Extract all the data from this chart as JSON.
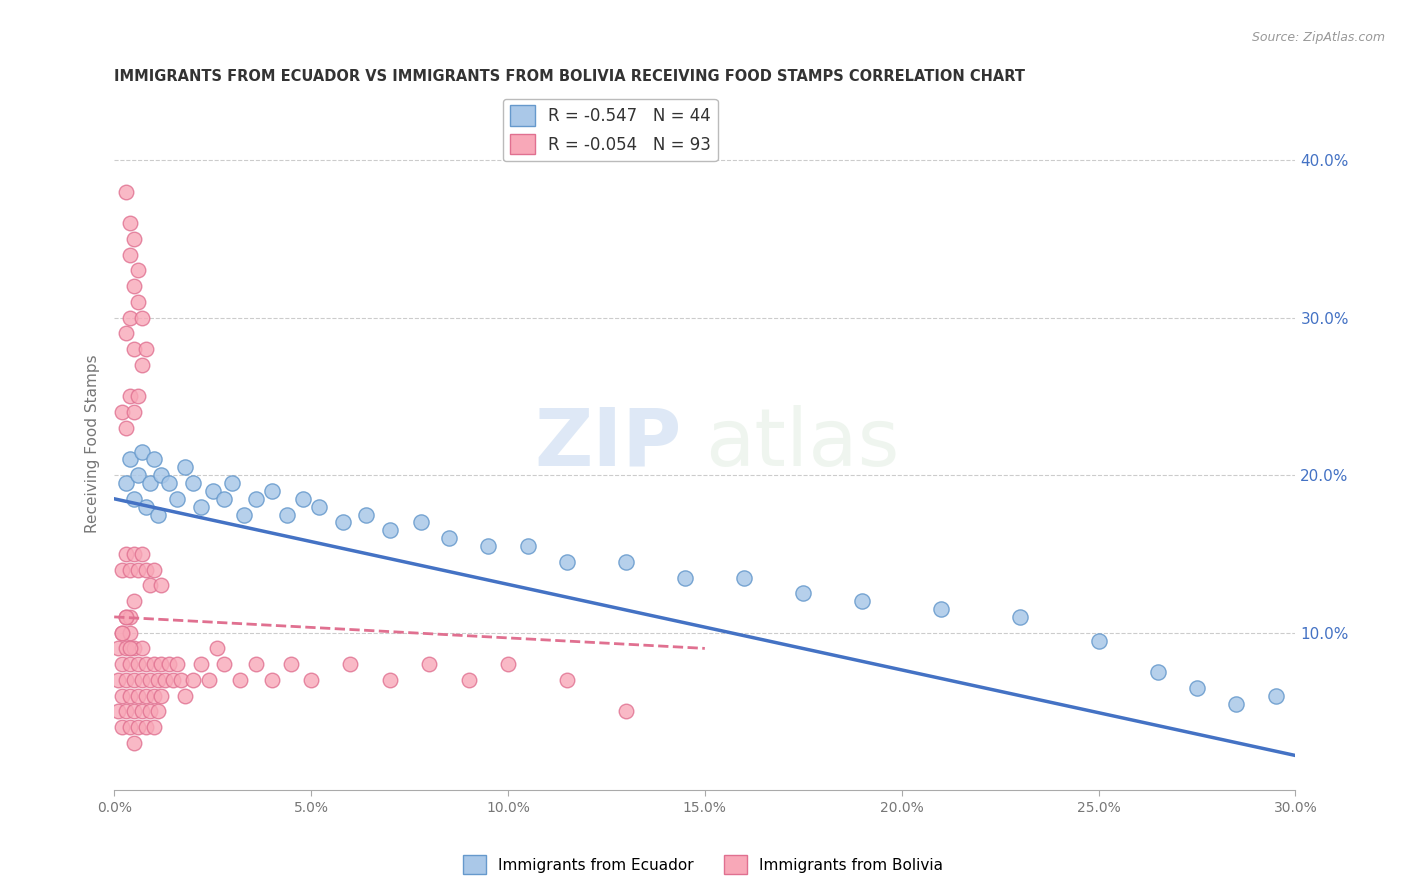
{
  "title": "IMMIGRANTS FROM ECUADOR VS IMMIGRANTS FROM BOLIVIA RECEIVING FOOD STAMPS CORRELATION CHART",
  "source": "Source: ZipAtlas.com",
  "ylabel": "Receiving Food Stamps",
  "ylabel_right_ticks": [
    "40.0%",
    "30.0%",
    "20.0%",
    "10.0%"
  ],
  "ylabel_right_vals": [
    0.4,
    0.3,
    0.2,
    0.1
  ],
  "xlim": [
    0.0,
    0.3
  ],
  "ylim": [
    0.0,
    0.44
  ],
  "ecuador_color": "#aac8e8",
  "ecuador_edge": "#6699cc",
  "bolivia_color": "#f8a8b8",
  "bolivia_edge": "#e07090",
  "trendline_ecuador": "#4472c4",
  "trendline_bolivia": "#e07090",
  "watermark_zip": "ZIP",
  "watermark_atlas": "atlas",
  "legend_r_ecuador": "-0.547",
  "legend_n_ecuador": "44",
  "legend_r_bolivia": "-0.054",
  "legend_n_bolivia": "93",
  "ecuador_x": [
    0.003,
    0.004,
    0.005,
    0.006,
    0.007,
    0.008,
    0.009,
    0.01,
    0.011,
    0.012,
    0.014,
    0.016,
    0.018,
    0.02,
    0.022,
    0.025,
    0.028,
    0.03,
    0.033,
    0.036,
    0.04,
    0.044,
    0.048,
    0.052,
    0.058,
    0.064,
    0.07,
    0.078,
    0.085,
    0.095,
    0.105,
    0.115,
    0.13,
    0.145,
    0.16,
    0.175,
    0.19,
    0.21,
    0.23,
    0.25,
    0.265,
    0.275,
    0.285,
    0.295
  ],
  "ecuador_y": [
    0.195,
    0.21,
    0.185,
    0.2,
    0.215,
    0.18,
    0.195,
    0.21,
    0.175,
    0.2,
    0.195,
    0.185,
    0.205,
    0.195,
    0.18,
    0.19,
    0.185,
    0.195,
    0.175,
    0.185,
    0.19,
    0.175,
    0.185,
    0.18,
    0.17,
    0.175,
    0.165,
    0.17,
    0.16,
    0.155,
    0.155,
    0.145,
    0.145,
    0.135,
    0.135,
    0.125,
    0.12,
    0.115,
    0.11,
    0.095,
    0.075,
    0.065,
    0.055,
    0.06
  ],
  "bolivia_x": [
    0.001,
    0.001,
    0.001,
    0.002,
    0.002,
    0.002,
    0.002,
    0.003,
    0.003,
    0.003,
    0.003,
    0.004,
    0.004,
    0.004,
    0.004,
    0.005,
    0.005,
    0.005,
    0.005,
    0.006,
    0.006,
    0.006,
    0.007,
    0.007,
    0.007,
    0.008,
    0.008,
    0.008,
    0.009,
    0.009,
    0.01,
    0.01,
    0.01,
    0.011,
    0.011,
    0.012,
    0.012,
    0.013,
    0.014,
    0.015,
    0.016,
    0.017,
    0.018,
    0.02,
    0.022,
    0.024,
    0.026,
    0.028,
    0.032,
    0.036,
    0.04,
    0.045,
    0.05,
    0.06,
    0.07,
    0.08,
    0.09,
    0.1,
    0.115,
    0.13,
    0.002,
    0.003,
    0.004,
    0.005,
    0.006,
    0.007,
    0.008,
    0.009,
    0.01,
    0.012,
    0.002,
    0.003,
    0.004,
    0.005,
    0.003,
    0.004,
    0.005,
    0.006,
    0.007,
    0.004,
    0.005,
    0.006,
    0.003,
    0.004,
    0.005,
    0.006,
    0.007,
    0.008,
    0.004,
    0.005,
    0.002,
    0.003,
    0.004
  ],
  "bolivia_y": [
    0.09,
    0.07,
    0.05,
    0.1,
    0.08,
    0.06,
    0.04,
    0.11,
    0.09,
    0.07,
    0.05,
    0.1,
    0.08,
    0.06,
    0.04,
    0.09,
    0.07,
    0.05,
    0.03,
    0.08,
    0.06,
    0.04,
    0.09,
    0.07,
    0.05,
    0.08,
    0.06,
    0.04,
    0.07,
    0.05,
    0.08,
    0.06,
    0.04,
    0.07,
    0.05,
    0.08,
    0.06,
    0.07,
    0.08,
    0.07,
    0.08,
    0.07,
    0.06,
    0.07,
    0.08,
    0.07,
    0.09,
    0.08,
    0.07,
    0.08,
    0.07,
    0.08,
    0.07,
    0.08,
    0.07,
    0.08,
    0.07,
    0.08,
    0.07,
    0.05,
    0.14,
    0.15,
    0.14,
    0.15,
    0.14,
    0.15,
    0.14,
    0.13,
    0.14,
    0.13,
    0.24,
    0.23,
    0.25,
    0.24,
    0.29,
    0.3,
    0.28,
    0.25,
    0.27,
    0.34,
    0.35,
    0.33,
    0.38,
    0.36,
    0.32,
    0.31,
    0.3,
    0.28,
    0.11,
    0.12,
    0.1,
    0.11,
    0.09
  ]
}
